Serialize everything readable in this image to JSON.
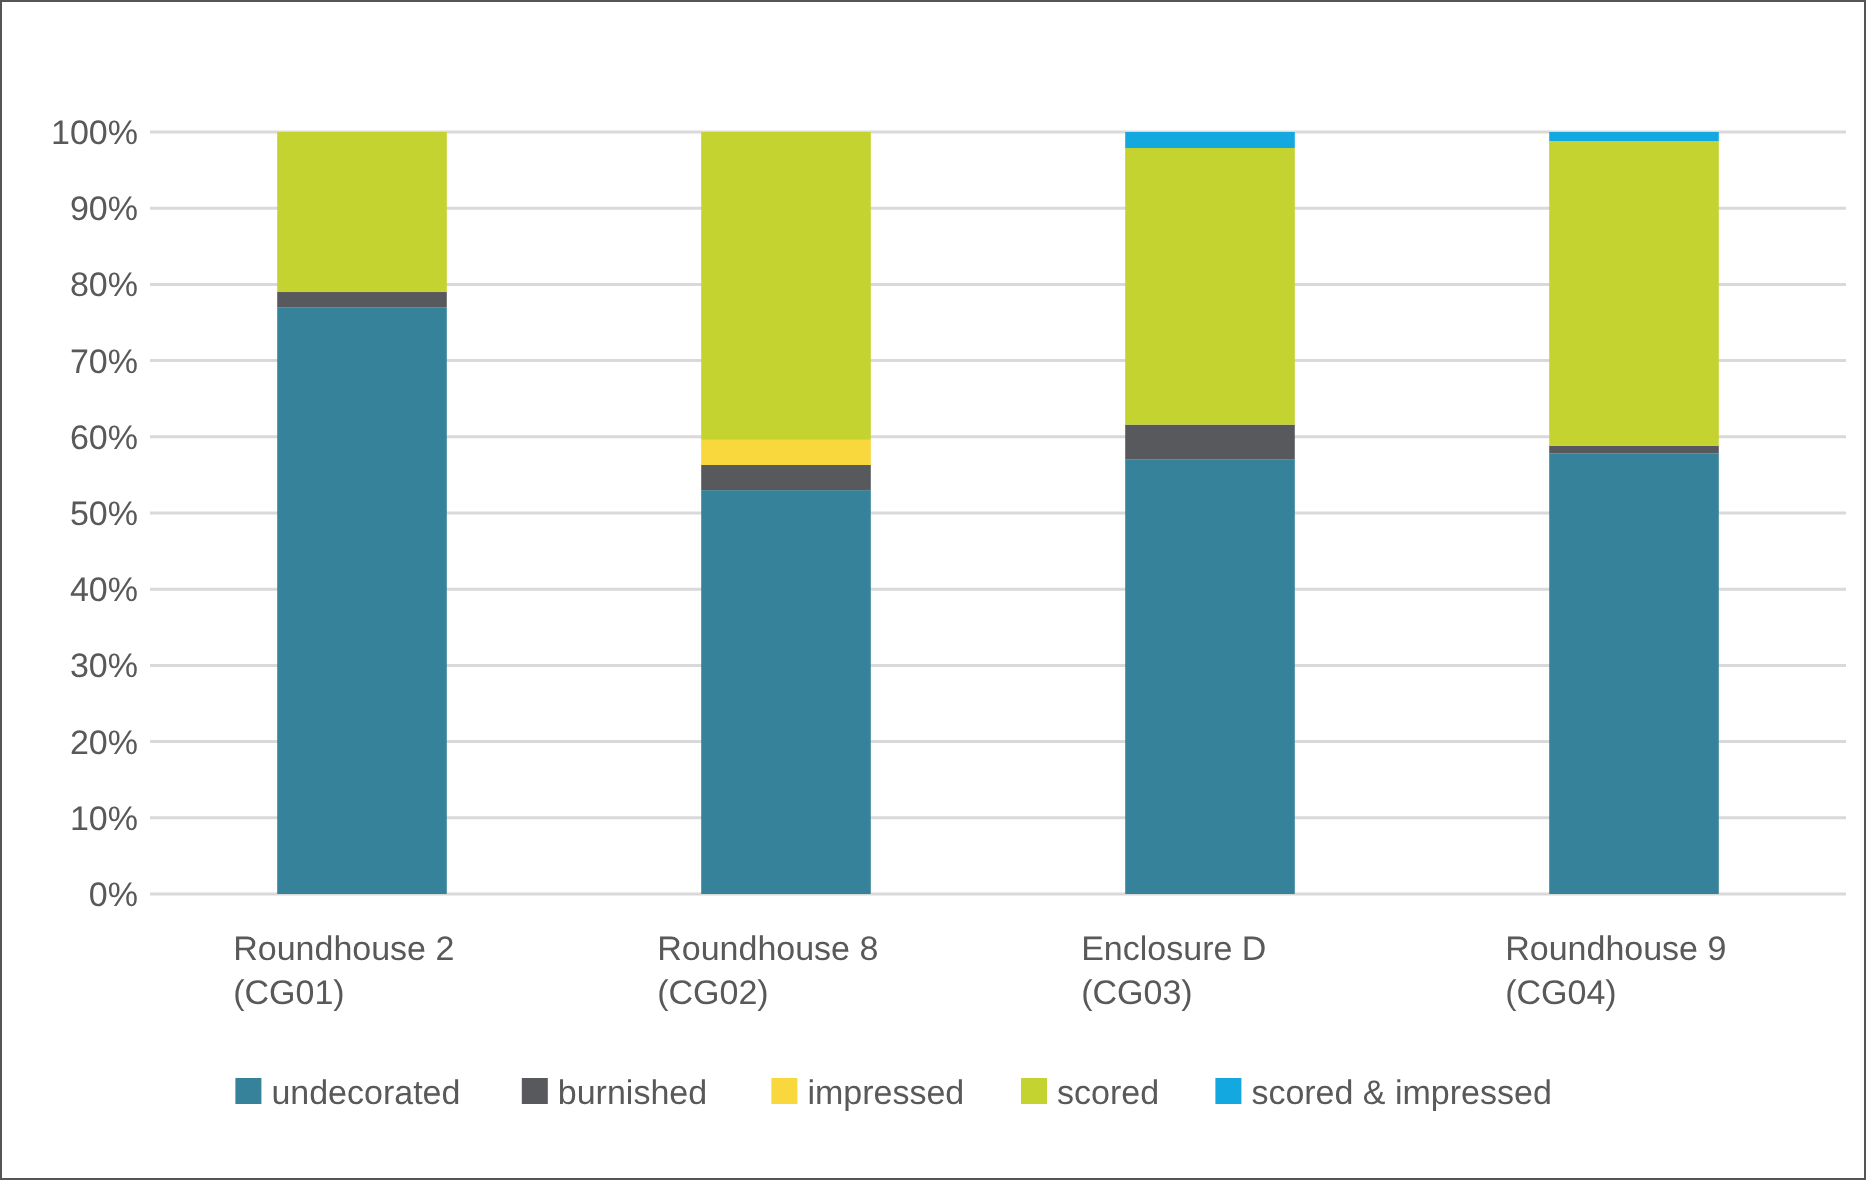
{
  "chart_data": {
    "type": "bar",
    "stacked": true,
    "categories": [
      "Roundhouse 2\n(CG01)",
      "Roundhouse 8\n(CG02)",
      "Enclosure D\n(CG03)",
      "Roundhouse 9\n(CG04)"
    ],
    "series": [
      {
        "name": "undecorated",
        "color": "#36829a",
        "values": [
          77,
          53,
          57,
          57.8
        ]
      },
      {
        "name": "burnished",
        "color": "#58595c",
        "values": [
          2,
          3.3,
          4.6,
          1
        ]
      },
      {
        "name": "impressed",
        "color": "#f8d83c",
        "values": [
          0,
          3.3,
          0,
          0
        ]
      },
      {
        "name": "scored",
        "color": "#c4d32f",
        "values": [
          21,
          40.4,
          36.3,
          40
        ]
      },
      {
        "name": "scored & impressed",
        "color": "#13a9e0",
        "values": [
          0,
          0,
          2.1,
          1.2
        ]
      }
    ],
    "ylim": [
      0,
      100
    ],
    "yticks": [
      {
        "value": 0,
        "label": "0%"
      },
      {
        "value": 10,
        "label": "10%"
      },
      {
        "value": 20,
        "label": "20%"
      },
      {
        "value": 30,
        "label": "30%"
      },
      {
        "value": 40,
        "label": "40%"
      },
      {
        "value": 50,
        "label": "50%"
      },
      {
        "value": 60,
        "label": "60%"
      },
      {
        "value": 70,
        "label": "70%"
      },
      {
        "value": 80,
        "label": "80%"
      },
      {
        "value": 90,
        "label": "90%"
      },
      {
        "value": 100,
        "label": "100%"
      }
    ],
    "grid": "y",
    "legend": "bottom"
  }
}
